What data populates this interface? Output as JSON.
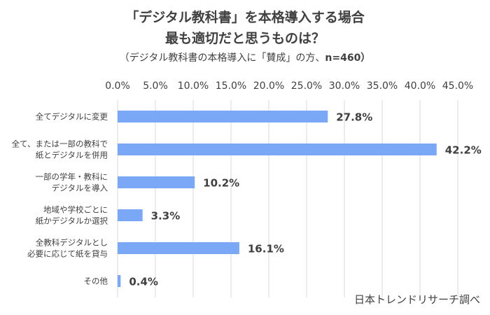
{
  "title_line1": "「デジタル教科書」を本格導入する場合",
  "title_line2": "最も適切だと思うものは？",
  "subtitle": "（デジタル教科書の本格導入に「賛成」の方、",
  "subtitle_n": "n=460）",
  "source": "日本トレンドリサーチ調べ",
  "colors": {
    "bar": "#7ba7f7",
    "grid": "#d9d9d9",
    "text": "#404040"
  },
  "chart_data": {
    "type": "bar",
    "orientation": "horizontal",
    "xlim": [
      0,
      45
    ],
    "tick_step": 5,
    "tick_labels": [
      "0.0%",
      "5.0%",
      "10.0%",
      "15.0%",
      "20.0%",
      "25.0%",
      "30.0%",
      "35.0%",
      "40.0%",
      "45.0%"
    ],
    "axis_position": "top",
    "grid": true,
    "categories": [
      [
        "全てデジタルに変更"
      ],
      [
        "全て、または一部の教科で",
        "紙とデジタルを併用"
      ],
      [
        "一部の学年・教科に",
        "デジタルを導入"
      ],
      [
        "地域や学校ごとに",
        "紙かデジタルか選択"
      ],
      [
        "全教科デジタルとし",
        "必要に応じて紙を貸与"
      ],
      [
        "その他"
      ]
    ],
    "values": [
      27.8,
      42.2,
      10.2,
      3.3,
      16.1,
      0.4
    ],
    "data_labels": [
      "27.8%",
      "42.2%",
      "10.2%",
      "3.3%",
      "16.1%",
      "0.4%"
    ]
  }
}
